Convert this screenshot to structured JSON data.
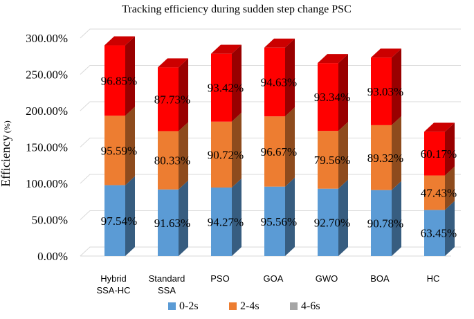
{
  "chart_data": {
    "type": "bar",
    "stacked": true,
    "style": "3d-stacked-column",
    "title": "Tracking efficiency during sudden step change PSC",
    "ylabel": "Efficiency",
    "ylabel_unit": "(%)",
    "xlabel": "",
    "ylim": [
      0,
      300
    ],
    "yticks": [
      0,
      50,
      100,
      150,
      200,
      250,
      300
    ],
    "ytick_labels": [
      "0.00%",
      "50.00%",
      "100.00%",
      "150.00%",
      "200.00%",
      "250.00%",
      "300.00%"
    ],
    "categories": [
      [
        "Hybrid",
        "SSA-HC"
      ],
      [
        "Standard",
        "SSA"
      ],
      [
        "PSO"
      ],
      [
        "GOA"
      ],
      [
        "GWO"
      ],
      [
        "BOA"
      ],
      [
        "HC"
      ]
    ],
    "series": [
      {
        "name": "0-2s",
        "color": "#5b9bd5",
        "values": [
          97.54,
          91.63,
          94.27,
          95.56,
          92.7,
          90.78,
          63.45
        ],
        "labels": [
          "97.54%",
          "91.63%",
          "94.27%",
          "95.56%",
          "92.70%",
          "90.78%",
          "63.45%"
        ]
      },
      {
        "name": "2-4s",
        "color": "#ed7d31",
        "values": [
          95.59,
          80.33,
          90.72,
          96.67,
          79.56,
          89.32,
          47.43
        ],
        "labels": [
          "95.59%",
          "80.33%",
          "90.72%",
          "96.67%",
          "79.56%",
          "89.32%",
          "47.43%"
        ]
      },
      {
        "name": "4-6s",
        "color": "#ff0000",
        "values": [
          96.85,
          87.73,
          93.42,
          94.63,
          93.34,
          93.03,
          60.17
        ],
        "labels": [
          "96.85%",
          "87.73%",
          "93.42%",
          "94.63%",
          "93.34%",
          "93.03%",
          "60.17%"
        ]
      }
    ],
    "legend": {
      "position": "bottom",
      "entries": [
        {
          "name": "0-2s",
          "color": "#5b9bd5"
        },
        {
          "name": "2-4s",
          "color": "#ed7d31"
        },
        {
          "name": "4-6s",
          "color": "#a5a5a5"
        }
      ]
    },
    "grid": true
  }
}
